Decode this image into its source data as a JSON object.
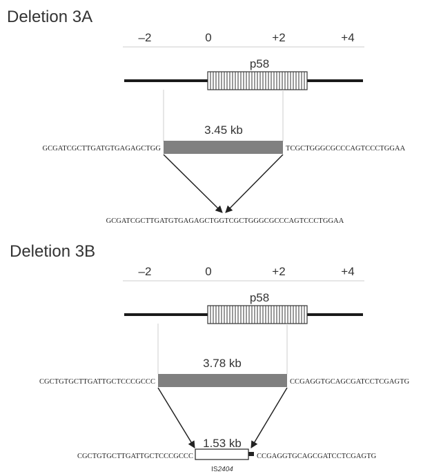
{
  "panels": [
    {
      "title": "Deletion 3A",
      "ticks": [
        "–2",
        "0",
        "+2",
        "+4"
      ],
      "gene": "p58",
      "deletion_size": "3.45 kb",
      "left_flank": "GCGATCGCTTGATGTGAGAGCTGG",
      "right_flank": "TCGCTGGGCGCCCAGTCCCTGGAA",
      "result_seq": "GCGATCGCTTGATGTGAGAGCTGGTCGCTGGGCGCCCAGTCCCTGGAA"
    },
    {
      "title": "Deletion 3B",
      "ticks": [
        "–2",
        "0",
        "+2",
        "+4"
      ],
      "gene": "p58",
      "deletion_size": "3.78 kb",
      "left_flank": "CGCTGTGCTTGATTGCTCCCGCCC",
      "right_flank": "CCGAGGTGCAGCGATCCTCGAGTG",
      "result_left": "CGCTGTGCTTGATTGCTCCCGCCC",
      "insert_size": "1.53 kb",
      "insert_name_prefix": "IS",
      "insert_name_number": "2404",
      "result_right": "CCGAGGTGCAGCGATCCTCGAGTG"
    }
  ],
  "colors": {
    "deleted_region": "#808080",
    "backbone": "#1a1a1a",
    "text": "#333333"
  }
}
